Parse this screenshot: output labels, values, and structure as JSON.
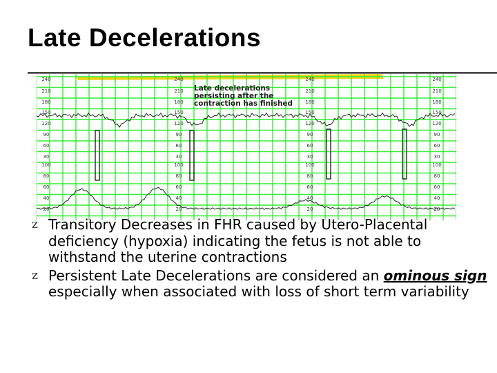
{
  "slide": {
    "title": "Late Decelerations",
    "bullet_glyph": "z",
    "bullets": [
      {
        "text": "Transitory Decreases in FHR caused by Utero-Placental deficiency (hypoxia) indicating the fetus is not able to withstand the uterine contractions"
      },
      {
        "prefix": "Persistent Late Decelerations are considered an ",
        "emphasis": "ominous sign",
        "suffix": " especially when associated with loss of short term variability"
      }
    ]
  },
  "strip": {
    "annotation": [
      "Late decelerations",
      "persisting after the",
      "contraction has finished"
    ],
    "fhr_scale": [
      "240",
      "210",
      "180",
      "150",
      "120",
      "90",
      "60",
      "30"
    ],
    "toco_scale": [
      "100",
      "80",
      "60",
      "40",
      "20"
    ],
    "grid_color": "#33ee33",
    "paper_color": "#ffffff",
    "highlight_color": "#f0d21a",
    "trace_color": "#222222"
  }
}
